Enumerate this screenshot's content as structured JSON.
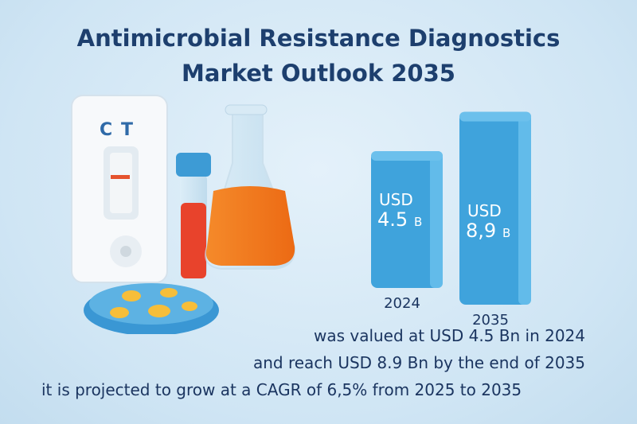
{
  "title": {
    "line1": "Antimicrobial Resistance Diagnostics",
    "line2": "Market Outlook 2035"
  },
  "illustration": {
    "test_strip_labels": [
      "C",
      "T"
    ]
  },
  "chart_data": {
    "type": "bar",
    "categories": [
      "2024",
      "2035"
    ],
    "values": [
      4.5,
      8.9
    ],
    "unit": "USD Billion",
    "data_labels": [
      {
        "line1": "USD",
        "value": "4.5",
        "suffix": "B"
      },
      {
        "line1": "USD",
        "value": "8,9",
        "suffix": "B"
      }
    ],
    "bar_color": "#3fa3dc",
    "grid": false
  },
  "text": {
    "line1": "was valued at USD 4.5 Bn in 2024",
    "line2": "and reach USD 8.9 Bn by the end of 2035",
    "line3": "it is projected to grow at a CAGR of 6,5% from 2025 to 2035"
  },
  "colors": {
    "title": "#1d3f6e",
    "accent": "#3fa3dc",
    "liquid": "#f07a1e",
    "tube": "#e8432c",
    "colonies": "#f6be3a"
  }
}
